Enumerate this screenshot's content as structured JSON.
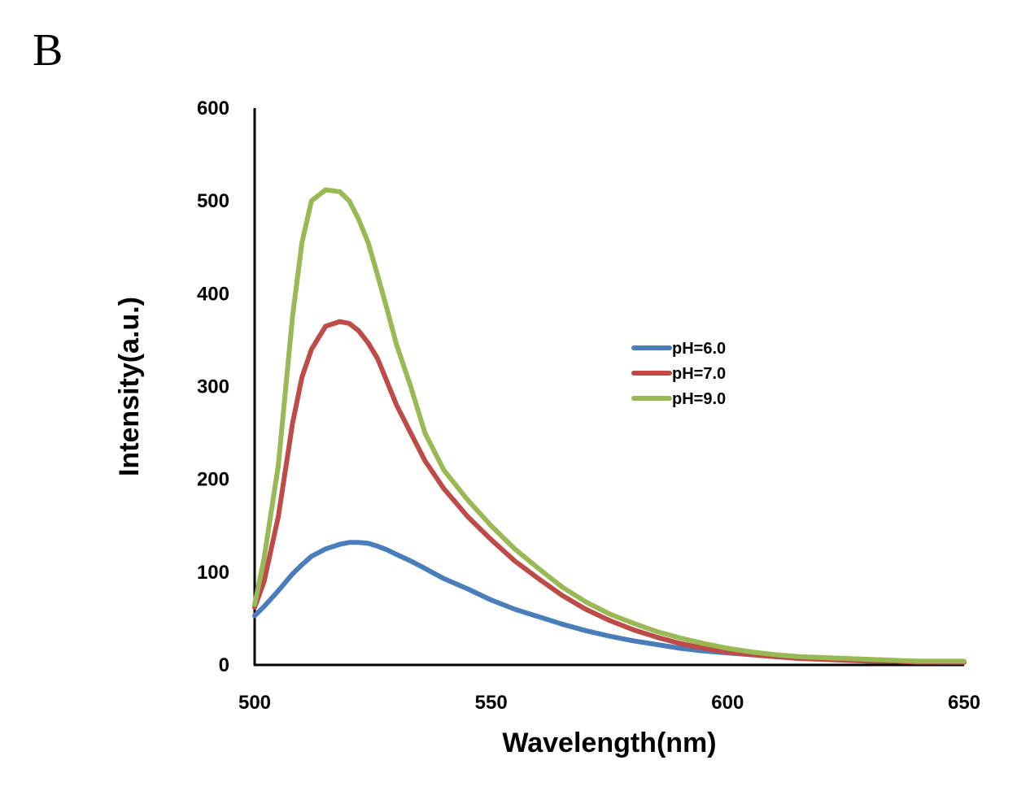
{
  "panel_label": "B",
  "chart_data": {
    "type": "line",
    "title": "",
    "xlabel": "Wavelength(nm)",
    "ylabel": "Intensity(a.u.)",
    "xlim": [
      500,
      650
    ],
    "ylim": [
      0,
      600
    ],
    "xticks": [
      500,
      550,
      600,
      650
    ],
    "yticks": [
      0,
      100,
      200,
      300,
      400,
      500,
      600
    ],
    "grid": false,
    "legend_position": "right-middle",
    "x": [
      500,
      502,
      505,
      508,
      510,
      512,
      515,
      518,
      520,
      522,
      524,
      526,
      528,
      530,
      533,
      536,
      540,
      545,
      550,
      555,
      560,
      565,
      570,
      575,
      580,
      585,
      590,
      595,
      600,
      605,
      610,
      615,
      620,
      625,
      630,
      635,
      640,
      645,
      650
    ],
    "series": [
      {
        "name": "pH=6.0",
        "color": "#4a7ebb",
        "values": [
          53,
          63,
          80,
          98,
          108,
          117,
          125,
          130,
          132,
          132,
          131,
          128,
          124,
          119,
          112,
          104,
          93,
          82,
          70,
          60,
          52,
          44,
          37,
          31,
          26,
          22,
          18,
          15,
          13,
          11,
          9,
          8,
          7,
          6,
          5,
          4,
          4,
          3,
          3
        ]
      },
      {
        "name": "pH=7.0",
        "color": "#be4b48",
        "values": [
          62,
          90,
          160,
          260,
          310,
          340,
          365,
          370,
          368,
          360,
          347,
          330,
          305,
          280,
          250,
          220,
          190,
          160,
          135,
          112,
          93,
          75,
          60,
          48,
          38,
          30,
          23,
          18,
          14,
          11,
          9,
          7,
          6,
          5,
          4,
          4,
          3,
          3,
          3
        ]
      },
      {
        "name": "pH=9.0",
        "color": "#98b954",
        "values": [
          65,
          115,
          215,
          375,
          455,
          500,
          512,
          510,
          500,
          480,
          455,
          420,
          383,
          345,
          300,
          250,
          210,
          178,
          150,
          125,
          104,
          84,
          68,
          55,
          45,
          36,
          29,
          23,
          18,
          14,
          11,
          9,
          8,
          7,
          6,
          5,
          4,
          4,
          4
        ]
      }
    ]
  }
}
